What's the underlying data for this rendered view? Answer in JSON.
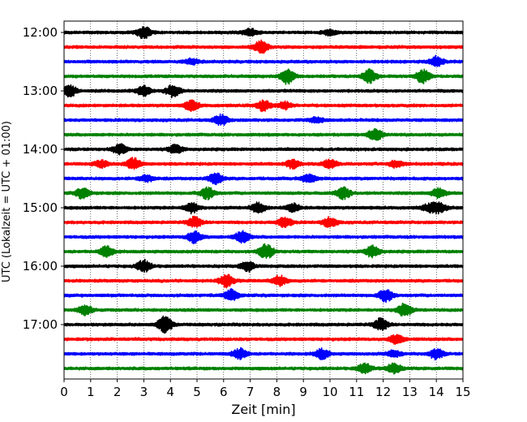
{
  "chart_data": {
    "type": "line",
    "title": "",
    "xlabel": "Zeit  [min]",
    "ylabel": "UTC (Lokalzeit = UTC + 01:00)",
    "xlim": [
      0,
      15
    ],
    "x_ticks": [
      "0",
      "1",
      "2",
      "3",
      "4",
      "5",
      "6",
      "7",
      "8",
      "9",
      "10",
      "11",
      "12",
      "13",
      "14",
      "15"
    ],
    "y_tick_labels": [
      "12:00",
      "13:00",
      "14:00",
      "15:00",
      "16:00",
      "17:00"
    ],
    "grid": "vertical dotted",
    "trace_interval_min": 15,
    "trace_colors": [
      "#000000",
      "#ff0000",
      "#0000ff",
      "#008000"
    ],
    "traces": [
      {
        "start": "12:00",
        "color": "#000000",
        "events": [
          {
            "t": 3.0,
            "amp": 0.35
          },
          {
            "t": 7.0,
            "amp": 0.2
          },
          {
            "t": 10.0,
            "amp": 0.15
          }
        ]
      },
      {
        "start": "12:15",
        "color": "#ff0000",
        "events": [
          {
            "t": 7.4,
            "amp": 0.35
          }
        ]
      },
      {
        "start": "12:30",
        "color": "#0000ff",
        "events": [
          {
            "t": 4.8,
            "amp": 0.15
          },
          {
            "t": 14.0,
            "amp": 0.3
          }
        ]
      },
      {
        "start": "12:45",
        "color": "#008000",
        "events": [
          {
            "t": 8.4,
            "amp": 0.45
          },
          {
            "t": 11.5,
            "amp": 0.4
          },
          {
            "t": 13.5,
            "amp": 0.4
          }
        ]
      },
      {
        "start": "13:00",
        "color": "#000000",
        "events": [
          {
            "t": 0.2,
            "amp": 0.35
          },
          {
            "t": 3.0,
            "amp": 0.3
          },
          {
            "t": 4.1,
            "amp": 0.35
          }
        ]
      },
      {
        "start": "13:15",
        "color": "#ff0000",
        "events": [
          {
            "t": 4.8,
            "amp": 0.3
          },
          {
            "t": 7.5,
            "amp": 0.3
          },
          {
            "t": 8.3,
            "amp": 0.2
          }
        ]
      },
      {
        "start": "13:30",
        "color": "#0000ff",
        "events": [
          {
            "t": 5.9,
            "amp": 0.3
          },
          {
            "t": 9.5,
            "amp": 0.15
          }
        ]
      },
      {
        "start": "13:45",
        "color": "#008000",
        "events": [
          {
            "t": 11.7,
            "amp": 0.35
          }
        ]
      },
      {
        "start": "14:00",
        "color": "#000000",
        "events": [
          {
            "t": 2.1,
            "amp": 0.3
          },
          {
            "t": 4.2,
            "amp": 0.25
          }
        ]
      },
      {
        "start": "14:15",
        "color": "#ff0000",
        "events": [
          {
            "t": 1.4,
            "amp": 0.2
          },
          {
            "t": 2.6,
            "amp": 0.35
          },
          {
            "t": 8.6,
            "amp": 0.25
          },
          {
            "t": 10.0,
            "amp": 0.25
          },
          {
            "t": 12.5,
            "amp": 0.2
          }
        ]
      },
      {
        "start": "14:30",
        "color": "#0000ff",
        "events": [
          {
            "t": 3.1,
            "amp": 0.2
          },
          {
            "t": 5.7,
            "amp": 0.35
          },
          {
            "t": 9.2,
            "amp": 0.25
          }
        ]
      },
      {
        "start": "14:45",
        "color": "#008000",
        "events": [
          {
            "t": 0.7,
            "amp": 0.3
          },
          {
            "t": 5.4,
            "amp": 0.35
          },
          {
            "t": 10.5,
            "amp": 0.35
          },
          {
            "t": 14.1,
            "amp": 0.3
          }
        ]
      },
      {
        "start": "15:00",
        "color": "#000000",
        "events": [
          {
            "t": 4.8,
            "amp": 0.3
          },
          {
            "t": 7.3,
            "amp": 0.3
          },
          {
            "t": 8.6,
            "amp": 0.25
          },
          {
            "t": 13.7,
            "amp": 0.2
          },
          {
            "t": 14.1,
            "amp": 0.3
          }
        ]
      },
      {
        "start": "15:15",
        "color": "#ff0000",
        "events": [
          {
            "t": 4.9,
            "amp": 0.3
          },
          {
            "t": 8.3,
            "amp": 0.3
          },
          {
            "t": 10.0,
            "amp": 0.3
          }
        ]
      },
      {
        "start": "15:30",
        "color": "#0000ff",
        "events": [
          {
            "t": 4.9,
            "amp": 0.35
          },
          {
            "t": 6.7,
            "amp": 0.35
          }
        ]
      },
      {
        "start": "15:45",
        "color": "#008000",
        "events": [
          {
            "t": 1.6,
            "amp": 0.3
          },
          {
            "t": 7.6,
            "amp": 0.45
          },
          {
            "t": 11.6,
            "amp": 0.35
          }
        ]
      },
      {
        "start": "16:00",
        "color": "#000000",
        "events": [
          {
            "t": 3.0,
            "amp": 0.35
          },
          {
            "t": 6.9,
            "amp": 0.3
          }
        ]
      },
      {
        "start": "16:15",
        "color": "#ff0000",
        "events": [
          {
            "t": 6.1,
            "amp": 0.35
          },
          {
            "t": 8.1,
            "amp": 0.3
          }
        ]
      },
      {
        "start": "16:30",
        "color": "#0000ff",
        "events": [
          {
            "t": 6.3,
            "amp": 0.35
          },
          {
            "t": 12.1,
            "amp": 0.35
          }
        ]
      },
      {
        "start": "16:45",
        "color": "#008000",
        "events": [
          {
            "t": 0.8,
            "amp": 0.3
          },
          {
            "t": 12.8,
            "amp": 0.4
          }
        ]
      },
      {
        "start": "17:00",
        "color": "#000000",
        "events": [
          {
            "t": 3.8,
            "amp": 0.5
          },
          {
            "t": 11.9,
            "amp": 0.35
          }
        ]
      },
      {
        "start": "17:15",
        "color": "#ff0000",
        "events": [
          {
            "t": 12.5,
            "amp": 0.25
          }
        ]
      },
      {
        "start": "17:30",
        "color": "#0000ff",
        "events": [
          {
            "t": 6.6,
            "amp": 0.3
          },
          {
            "t": 9.7,
            "amp": 0.3
          },
          {
            "t": 12.4,
            "amp": 0.2
          },
          {
            "t": 14.0,
            "amp": 0.3
          }
        ]
      },
      {
        "start": "17:45",
        "color": "#008000",
        "events": [
          {
            "t": 11.3,
            "amp": 0.3
          },
          {
            "t": 12.4,
            "amp": 0.3
          }
        ]
      }
    ]
  }
}
